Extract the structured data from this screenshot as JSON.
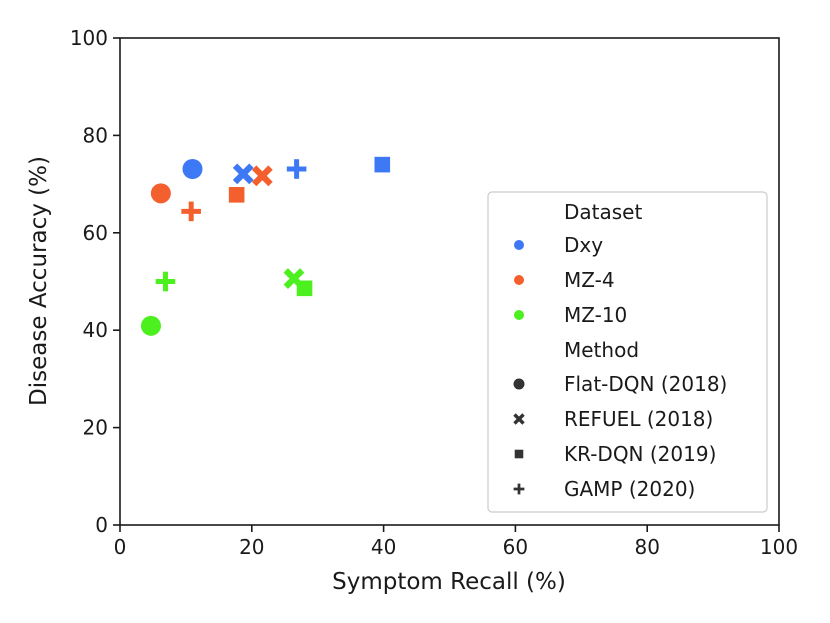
{
  "chart_data": {
    "type": "scatter",
    "title": "",
    "xlabel": "Symptom Recall (%)",
    "ylabel": "Disease Accuracy (%)",
    "xlim": [
      0,
      100
    ],
    "ylim": [
      0,
      100
    ],
    "xticks": [
      "0",
      "20",
      "40",
      "60",
      "80",
      "100"
    ],
    "yticks": [
      "0",
      "20",
      "40",
      "60",
      "80",
      "100"
    ],
    "grid": false,
    "legend_position": "center-right",
    "datasets": [
      {
        "name": "Dxy",
        "color": "#3d78f5"
      },
      {
        "name": "MZ-4",
        "color": "#f4602d"
      },
      {
        "name": "MZ-10",
        "color": "#4cf01f"
      }
    ],
    "methods": [
      {
        "name": "Flat-DQN (2018)",
        "marker": "circle"
      },
      {
        "name": "REFUEL (2018)",
        "marker": "x"
      },
      {
        "name": "KR-DQN (2019)",
        "marker": "square"
      },
      {
        "name": "GAMP (2020)",
        "marker": "plus"
      }
    ],
    "points": [
      {
        "dataset": "Dxy",
        "method": "Flat-DQN (2018)",
        "x": 11.0,
        "y": 73.1
      },
      {
        "dataset": "Dxy",
        "method": "REFUEL (2018)",
        "x": 18.7,
        "y": 72.1
      },
      {
        "dataset": "Dxy",
        "method": "KR-DQN (2019)",
        "x": 39.8,
        "y": 74.0
      },
      {
        "dataset": "Dxy",
        "method": "GAMP (2020)",
        "x": 26.8,
        "y": 73.1
      },
      {
        "dataset": "MZ-4",
        "method": "Flat-DQN (2018)",
        "x": 6.2,
        "y": 68.1
      },
      {
        "dataset": "MZ-4",
        "method": "REFUEL (2018)",
        "x": 21.6,
        "y": 71.7
      },
      {
        "dataset": "MZ-4",
        "method": "KR-DQN (2019)",
        "x": 17.7,
        "y": 67.8
      },
      {
        "dataset": "MZ-4",
        "method": "GAMP (2020)",
        "x": 10.8,
        "y": 64.4
      },
      {
        "dataset": "MZ-10",
        "method": "Flat-DQN (2018)",
        "x": 4.7,
        "y": 40.9
      },
      {
        "dataset": "MZ-10",
        "method": "REFUEL (2018)",
        "x": 26.4,
        "y": 50.6
      },
      {
        "dataset": "MZ-10",
        "method": "KR-DQN (2019)",
        "x": 28.0,
        "y": 48.6
      },
      {
        "dataset": "MZ-10",
        "method": "GAMP (2020)",
        "x": 6.9,
        "y": 50.0
      }
    ],
    "legend": {
      "title_dataset": "Dataset",
      "title_method": "Method"
    }
  }
}
